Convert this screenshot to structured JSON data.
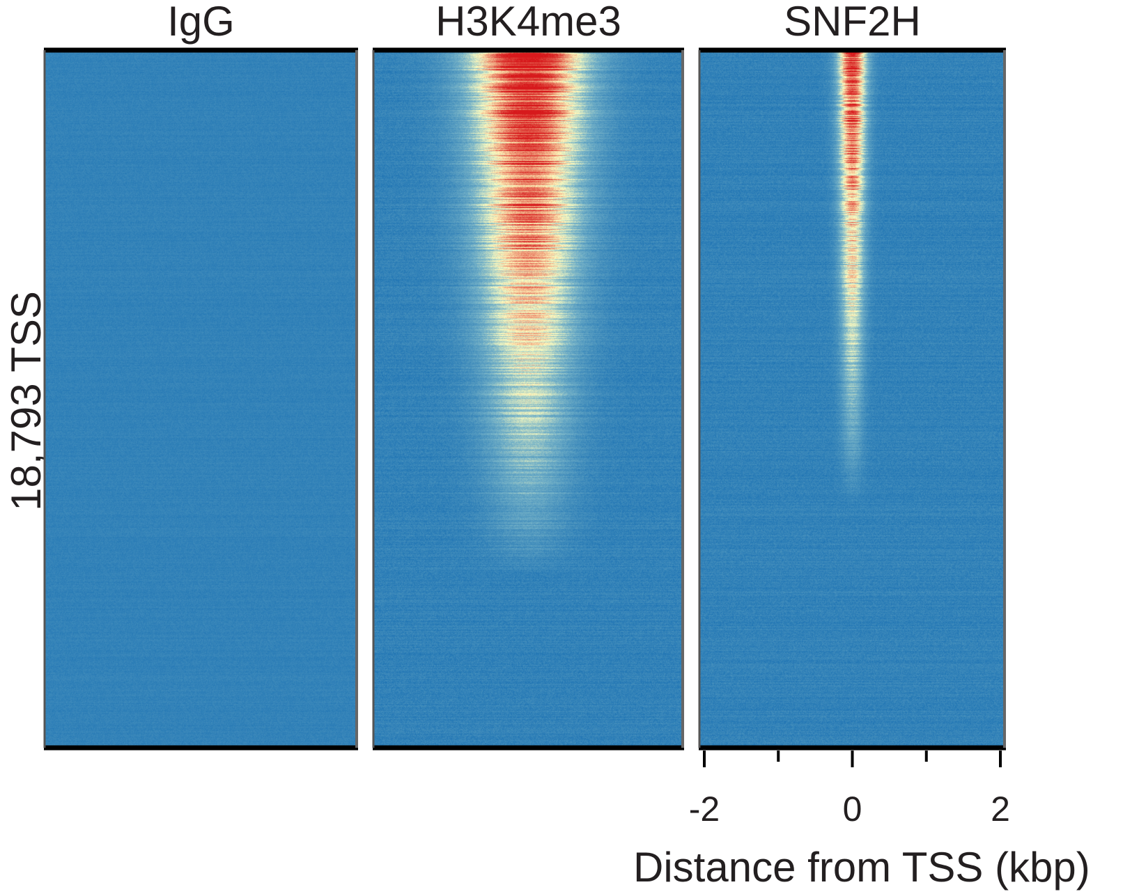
{
  "chart_data": {
    "type": "heatmap",
    "title": "",
    "ylabel": "18,793 TSS",
    "xlabel": "Distance from TSS (kbp)",
    "xlim": [
      -2,
      2
    ],
    "xticks": [
      -2,
      -1,
      0,
      1,
      2
    ],
    "xtick_labels": [
      "-2",
      "",
      "0",
      "",
      "2"
    ],
    "rows_label": "18,793 TSS",
    "colormap": {
      "low": "#1f74b4",
      "mid": "#fffdbf",
      "high": "#d7191c"
    },
    "panels": [
      {
        "name": "IgG",
        "peak_intensity": 0.05,
        "peak_width_kbp": 1.6,
        "signal_fraction": 0.0
      },
      {
        "name": "H3K4me3",
        "peak_intensity": 1.0,
        "peak_width_kbp": 1.6,
        "signal_fraction": 0.75
      },
      {
        "name": "SNF2H",
        "peak_intensity": 0.9,
        "peak_width_kbp": 0.4,
        "signal_fraction": 0.65
      }
    ]
  }
}
